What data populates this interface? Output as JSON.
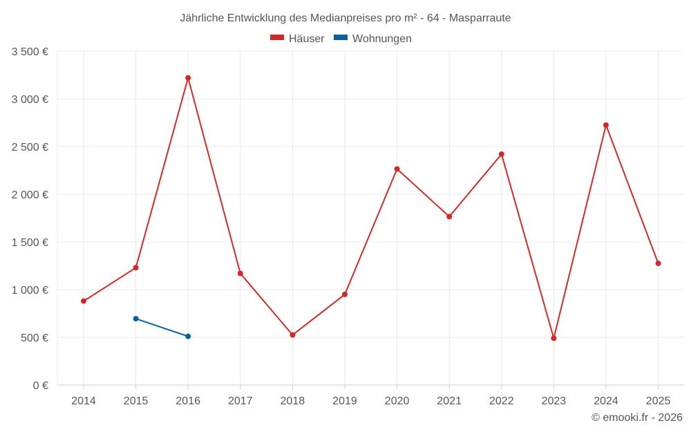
{
  "chart_data": {
    "type": "line",
    "title": "Jährliche Entwicklung des Medianpreises pro m² - 64 - Masparraute",
    "categories": [
      "2014",
      "2015",
      "2016",
      "2017",
      "2018",
      "2019",
      "2020",
      "2021",
      "2022",
      "2023",
      "2024",
      "2025"
    ],
    "y_ticks": [
      "0 €",
      "500 €",
      "1 000 €",
      "1 500 €",
      "2 000 €",
      "2 500 €",
      "3 000 €",
      "3 500 €"
    ],
    "ylim": [
      0,
      3500
    ],
    "grid": true,
    "legend_position": "top-center",
    "series": [
      {
        "name": "Häuser",
        "color": "#d62728",
        "values": [
          880,
          1230,
          3220,
          1170,
          525,
          950,
          2265,
          1765,
          2420,
          490,
          2725,
          1275
        ]
      },
      {
        "name": "Wohnungen",
        "color": "#08619a",
        "values": [
          null,
          695,
          510,
          null,
          null,
          null,
          null,
          null,
          null,
          null,
          null,
          null
        ]
      }
    ]
  },
  "credit": "© emooki.fr - 2026"
}
